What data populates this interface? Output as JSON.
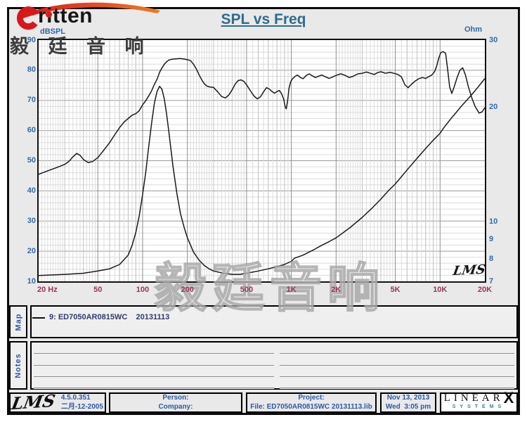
{
  "title": "SPL vs Freq",
  "watermark": "毅廷音响",
  "logo": {
    "brand": "ritten",
    "tagline_cn": "毅 廷 音 响"
  },
  "chart_data": {
    "type": "line",
    "title": "SPL vs Freq",
    "x_axis": {
      "scale": "log",
      "min_hz": 20,
      "max_hz": 20000,
      "tick_labels": [
        "20 Hz",
        "50",
        "100",
        "200",
        "500",
        "1K",
        "2K",
        "5K",
        "10K",
        "20K"
      ],
      "tick_freqs": [
        20,
        50,
        100,
        200,
        500,
        1000,
        2000,
        5000,
        10000,
        20000
      ]
    },
    "y_left_axis": {
      "label": "dBSPL",
      "scale": "linear",
      "min": 10,
      "max": 90,
      "major_step": 10,
      "minor_step": 2,
      "ticks": [
        90,
        80,
        70,
        60,
        50,
        40,
        30,
        20,
        10
      ]
    },
    "y_right_axis": {
      "label": "Ohm",
      "scale": "log",
      "min": 7,
      "max": 30,
      "ticks": [
        30,
        20,
        10,
        9,
        8,
        7
      ]
    },
    "grid": true,
    "inchart_logo": "LMS",
    "curve_color": "#1a1a1a",
    "series": [
      {
        "name": "9: ED7050AR0815WC 20131113",
        "unit": "dBSPL",
        "axis": "left",
        "points": [
          [
            20,
            45.5
          ],
          [
            22,
            46.3
          ],
          [
            24,
            47
          ],
          [
            26,
            47.6
          ],
          [
            28,
            48.2
          ],
          [
            30,
            48.8
          ],
          [
            32,
            49.8
          ],
          [
            34,
            51.3
          ],
          [
            36,
            52.4
          ],
          [
            38,
            51.8
          ],
          [
            40,
            50.4
          ],
          [
            43,
            49.4
          ],
          [
            46,
            49.7
          ],
          [
            50,
            51
          ],
          [
            55,
            53.6
          ],
          [
            60,
            56
          ],
          [
            65,
            58.6
          ],
          [
            70,
            61
          ],
          [
            75,
            62.8
          ],
          [
            80,
            64
          ],
          [
            85,
            65.1
          ],
          [
            90,
            65.6
          ],
          [
            95,
            66.6
          ],
          [
            100,
            68.5
          ],
          [
            105,
            69.9
          ],
          [
            110,
            71.5
          ],
          [
            115,
            73.2
          ],
          [
            120,
            75.3
          ],
          [
            125,
            77
          ],
          [
            130,
            79.3
          ],
          [
            135,
            80.8
          ],
          [
            140,
            82
          ],
          [
            145,
            82.8
          ],
          [
            150,
            83.4
          ],
          [
            160,
            83.7
          ],
          [
            170,
            83.8
          ],
          [
            180,
            83.9
          ],
          [
            190,
            83.7
          ],
          [
            200,
            83.5
          ],
          [
            210,
            83.2
          ],
          [
            220,
            82
          ],
          [
            230,
            80.4
          ],
          [
            240,
            78.4
          ],
          [
            250,
            76.8
          ],
          [
            260,
            75.5
          ],
          [
            270,
            74.8
          ],
          [
            280,
            74.5
          ],
          [
            300,
            74.3
          ],
          [
            320,
            72.8
          ],
          [
            340,
            71.3
          ],
          [
            360,
            70.8
          ],
          [
            380,
            71.8
          ],
          [
            400,
            73.5
          ],
          [
            420,
            75.5
          ],
          [
            440,
            76.6
          ],
          [
            460,
            76.8
          ],
          [
            480,
            76.3
          ],
          [
            500,
            75.2
          ],
          [
            530,
            73.2
          ],
          [
            560,
            71.5
          ],
          [
            590,
            70.5
          ],
          [
            620,
            71.2
          ],
          [
            650,
            72.8
          ],
          [
            680,
            74.2
          ],
          [
            710,
            73.8
          ],
          [
            740,
            73
          ],
          [
            770,
            72.4
          ],
          [
            800,
            72.9
          ],
          [
            830,
            73.3
          ],
          [
            860,
            72.2
          ],
          [
            890,
            70.3
          ],
          [
            910,
            67.8
          ],
          [
            925,
            67.2
          ],
          [
            945,
            70
          ],
          [
            965,
            74
          ],
          [
            990,
            76.2
          ],
          [
            1020,
            77.2
          ],
          [
            1060,
            78
          ],
          [
            1100,
            78.4
          ],
          [
            1150,
            77.6
          ],
          [
            1200,
            77.2
          ],
          [
            1260,
            78.3
          ],
          [
            1320,
            78.8
          ],
          [
            1380,
            78.2
          ],
          [
            1450,
            77.6
          ],
          [
            1520,
            78
          ],
          [
            1600,
            78.4
          ],
          [
            1700,
            77.8
          ],
          [
            1800,
            77.3
          ],
          [
            1900,
            77.8
          ],
          [
            2000,
            78.3
          ],
          [
            2150,
            78.8
          ],
          [
            2300,
            78.3
          ],
          [
            2450,
            77.6
          ],
          [
            2600,
            78
          ],
          [
            2800,
            78.8
          ],
          [
            3000,
            79
          ],
          [
            3200,
            79.4
          ],
          [
            3400,
            79
          ],
          [
            3600,
            78.6
          ],
          [
            3800,
            79.2
          ],
          [
            4000,
            79.5
          ],
          [
            4300,
            79
          ],
          [
            4600,
            79.3
          ],
          [
            4900,
            79
          ],
          [
            5200,
            78.6
          ],
          [
            5500,
            77.8
          ],
          [
            5800,
            75.2
          ],
          [
            6100,
            74.2
          ],
          [
            6400,
            75.3
          ],
          [
            6800,
            76.4
          ],
          [
            7200,
            77.2
          ],
          [
            7600,
            77.6
          ],
          [
            8000,
            77.3
          ],
          [
            8400,
            77.9
          ],
          [
            8800,
            78.4
          ],
          [
            9200,
            79.6
          ],
          [
            9500,
            81.5
          ],
          [
            9800,
            84
          ],
          [
            10100,
            85.8
          ],
          [
            10500,
            86.2
          ],
          [
            10900,
            85.6
          ],
          [
            11200,
            81
          ],
          [
            11600,
            74.5
          ],
          [
            12000,
            72.3
          ],
          [
            12400,
            74.3
          ],
          [
            13000,
            77.5
          ],
          [
            13600,
            80
          ],
          [
            14200,
            80.8
          ],
          [
            14800,
            78.5
          ],
          [
            15500,
            74.5
          ],
          [
            16300,
            71
          ],
          [
            17200,
            68
          ],
          [
            18300,
            65.8
          ],
          [
            19200,
            66.2
          ],
          [
            20000,
            67.6
          ]
        ]
      },
      {
        "name": "Impedance",
        "unit": "Ohm",
        "axis": "right",
        "points": [
          [
            20,
            7.25
          ],
          [
            30,
            7.3
          ],
          [
            40,
            7.35
          ],
          [
            50,
            7.45
          ],
          [
            60,
            7.55
          ],
          [
            70,
            7.75
          ],
          [
            80,
            8.2
          ],
          [
            85,
            8.7
          ],
          [
            90,
            9.4
          ],
          [
            95,
            10.4
          ],
          [
            100,
            11.8
          ],
          [
            105,
            13.5
          ],
          [
            110,
            15.8
          ],
          [
            115,
            18.2
          ],
          [
            120,
            20.5
          ],
          [
            125,
            22
          ],
          [
            130,
            22.7
          ],
          [
            135,
            22.3
          ],
          [
            140,
            21
          ],
          [
            145,
            19.2
          ],
          [
            150,
            17.3
          ],
          [
            160,
            14
          ],
          [
            170,
            11.9
          ],
          [
            180,
            10.5
          ],
          [
            190,
            9.7
          ],
          [
            200,
            9.1
          ],
          [
            220,
            8.35
          ],
          [
            240,
            7.95
          ],
          [
            260,
            7.7
          ],
          [
            280,
            7.55
          ],
          [
            300,
            7.45
          ],
          [
            350,
            7.35
          ],
          [
            400,
            7.3
          ],
          [
            450,
            7.3
          ],
          [
            500,
            7.35
          ],
          [
            600,
            7.45
          ],
          [
            700,
            7.55
          ],
          [
            800,
            7.65
          ],
          [
            900,
            7.75
          ],
          [
            1000,
            7.9
          ],
          [
            1050,
            8.05
          ],
          [
            1100,
            8.1
          ],
          [
            1200,
            8.2
          ],
          [
            1400,
            8.45
          ],
          [
            1600,
            8.7
          ],
          [
            1800,
            8.9
          ],
          [
            2000,
            9.1
          ],
          [
            2500,
            9.7
          ],
          [
            3000,
            10.3
          ],
          [
            3500,
            10.9
          ],
          [
            4000,
            11.5
          ],
          [
            4500,
            12.1
          ],
          [
            5000,
            12.6
          ],
          [
            6000,
            13.7
          ],
          [
            7000,
            14.7
          ],
          [
            8000,
            15.6
          ],
          [
            9000,
            16.4
          ],
          [
            10000,
            17.1
          ],
          [
            10500,
            17.6
          ],
          [
            11000,
            18
          ],
          [
            12000,
            18.8
          ],
          [
            13000,
            19.5
          ],
          [
            14000,
            20.2
          ],
          [
            15000,
            20.8
          ],
          [
            16000,
            21.4
          ],
          [
            17000,
            22
          ],
          [
            18000,
            22.6
          ],
          [
            19000,
            23.2
          ],
          [
            20000,
            23.8
          ]
        ]
      }
    ]
  },
  "map_section": {
    "label": "Map",
    "legend_text": "9: ED7050AR0815WC    20131113"
  },
  "notes_section": {
    "label": "Notes"
  },
  "footer": {
    "lms": "LMS",
    "version": "4.5.0.351",
    "date_cn": "二月-12-2005",
    "person": "Person:",
    "company": "Company:",
    "project": "Project:",
    "file": "File: ED7050AR0815WC 20131113.lib",
    "date": "Nov 13, 2013",
    "time": "Wed  3:05 pm",
    "linearx": {
      "linear": "LINEAR",
      "x": "X",
      "systems": "SYSTEMS"
    }
  }
}
